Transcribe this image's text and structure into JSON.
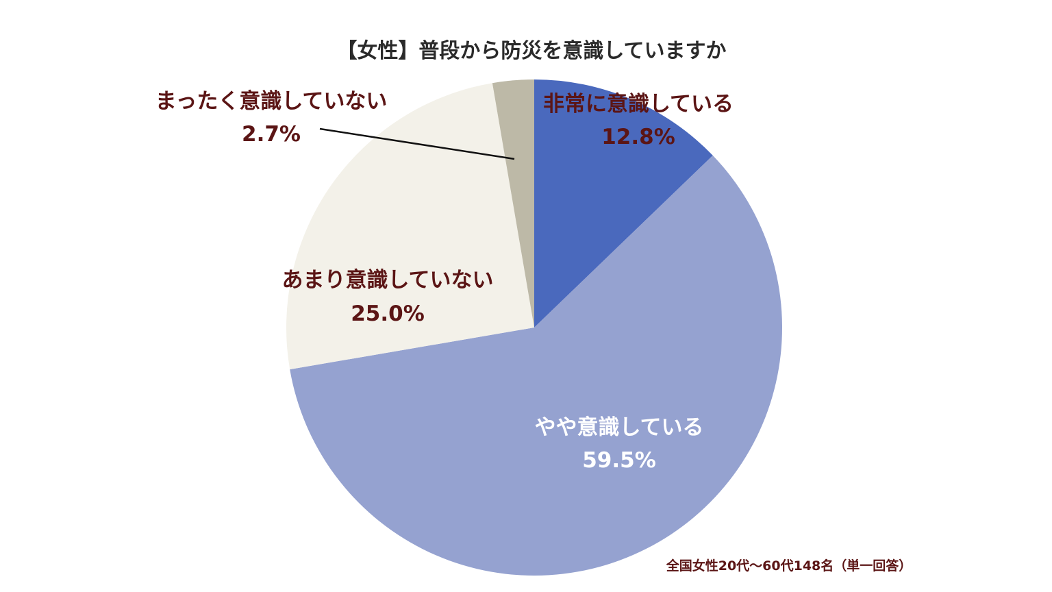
{
  "chart_data": {
    "type": "pie",
    "title": "【女性】普段から防災を意識していますか",
    "start": "top",
    "direction": "clockwise",
    "slices": [
      {
        "label": "非常に意識している",
        "value": 12.8,
        "value_label": "12.8%",
        "color": "#4a69bd"
      },
      {
        "label": "やや意識している",
        "value": 59.5,
        "value_label": "59.5%",
        "color": "#95a2d0"
      },
      {
        "label": "あまり意識していない",
        "value": 25.0,
        "value_label": "25.0%",
        "color": "#f3f1e9"
      },
      {
        "label": "まったく意識していない",
        "value": 2.7,
        "value_label": "2.7%",
        "color": "#bdb9a7"
      }
    ],
    "note": "全国女性20代～60代148名（単一回答）"
  }
}
